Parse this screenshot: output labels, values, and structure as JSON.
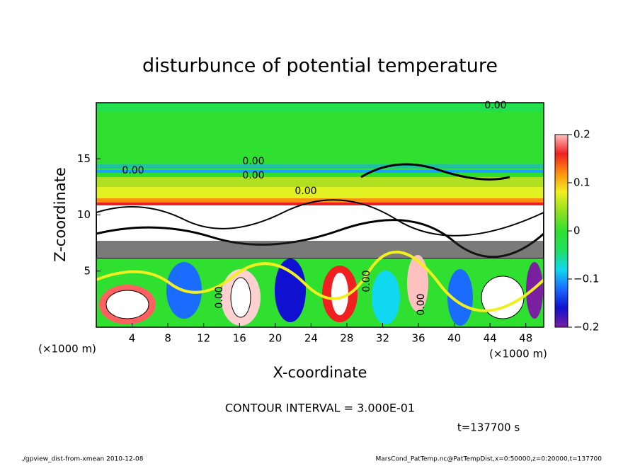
{
  "chart_data": {
    "type": "contour",
    "title": "disturbunce of potential temperature",
    "xlabel": "X-coordinate",
    "ylabel": "Z-coordinate",
    "xunit": "(×1000 m)",
    "xlim": [
      0,
      50
    ],
    "xticks": [
      4,
      8,
      12,
      16,
      20,
      24,
      28,
      32,
      36,
      40,
      44,
      48
    ],
    "ylim": [
      0,
      20
    ],
    "yticks": [
      5,
      10,
      15
    ],
    "colorlim": [
      -0.2,
      0.2
    ],
    "colorticks": [
      {
        "value": -0.2,
        "label": "−0.2"
      },
      {
        "value": -0.1,
        "label": "−0.1"
      },
      0,
      0.1,
      0.2
    ],
    "contour_labels": [
      "0.00",
      "0.00",
      "0.00",
      "0.00",
      "0.00",
      "0.00",
      "0.00",
      "0.00"
    ],
    "contour_interval_text": "CONTOUR INTERVAL = 3.000E-01",
    "time_text": "t=137700 s",
    "footer_left": "./gpview_dist-from-xmean  2010-12-08",
    "footer_right": "MarsCond_PatTemp.nc@PatTempDist,x=0:50000,z=0:20000,t=137700"
  }
}
